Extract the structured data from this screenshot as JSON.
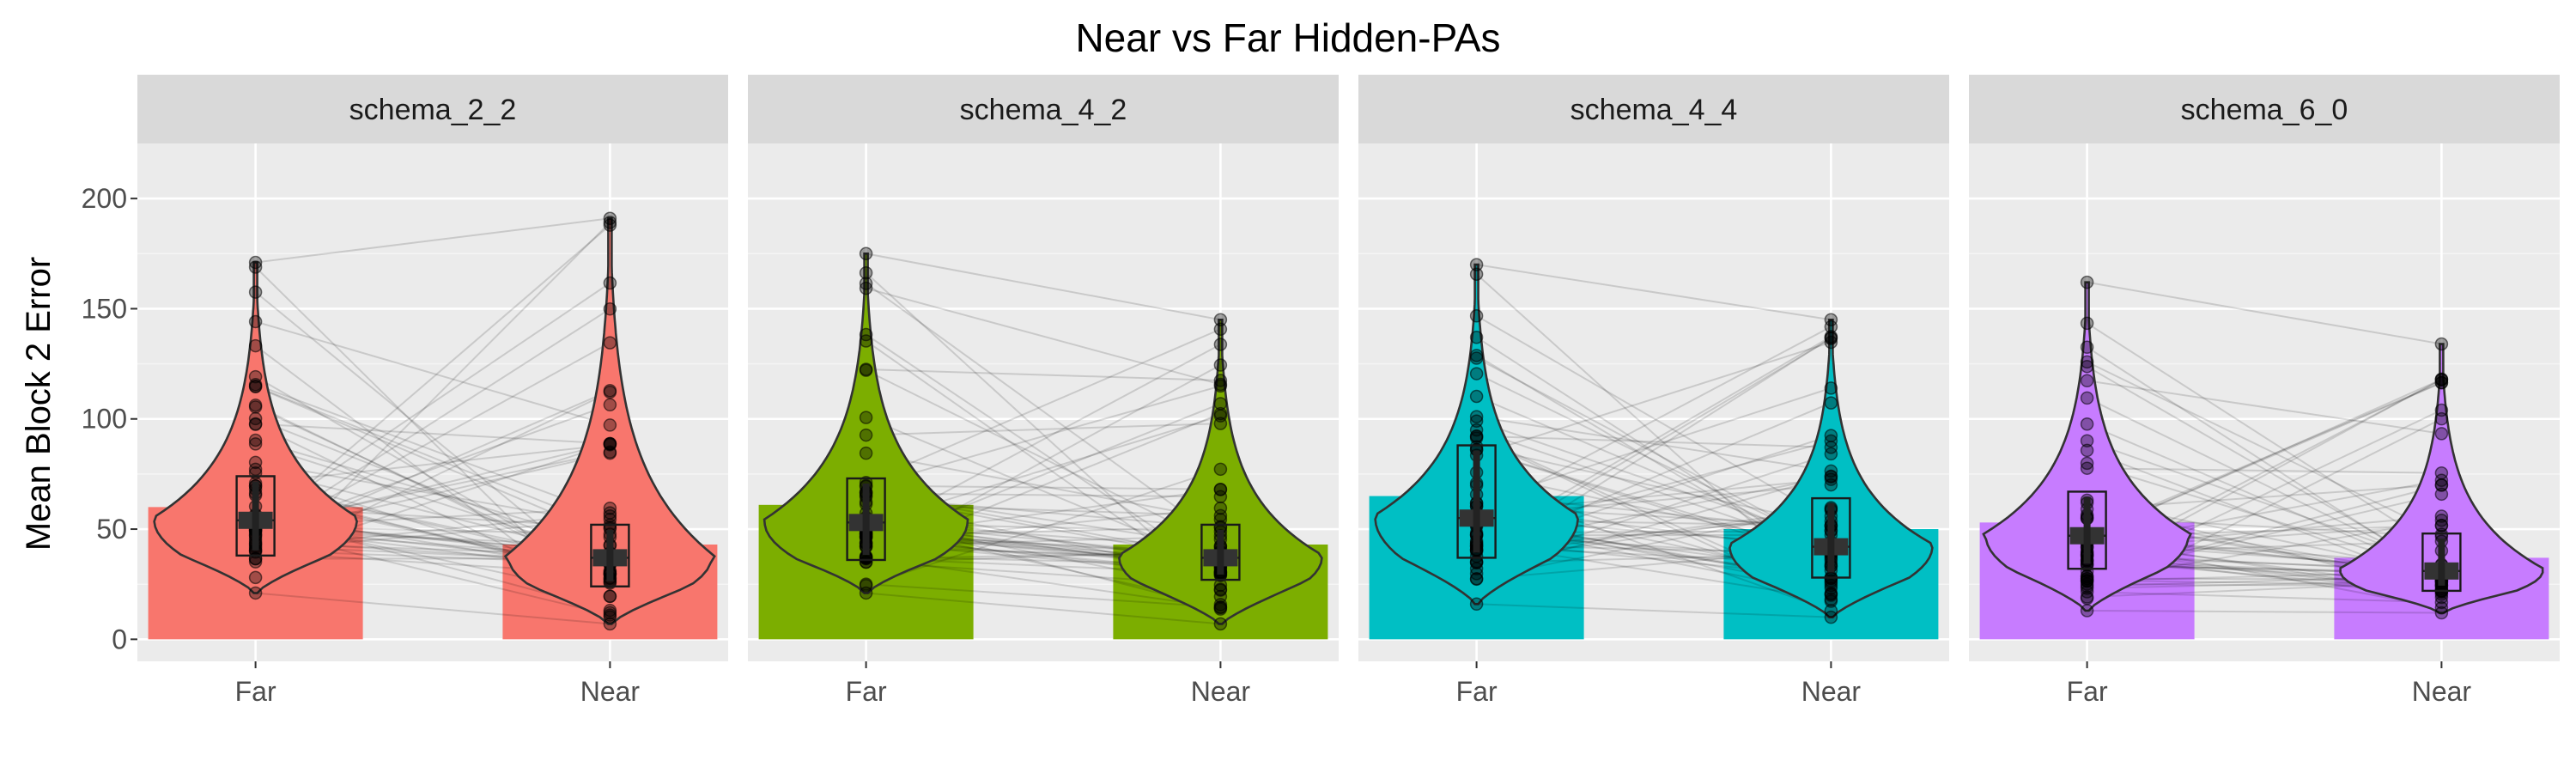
{
  "chart_data": {
    "type": "bar",
    "title": "Near vs Far Hidden-PAs",
    "xlabel": "",
    "ylabel": "Mean Block 2 Error",
    "ylim": [
      -10,
      225
    ],
    "yticks": [
      0,
      50,
      100,
      150,
      200
    ],
    "categories": [
      "Far",
      "Near"
    ],
    "grid": true,
    "legend": "none",
    "overlays": [
      "violin",
      "boxplot",
      "points",
      "paired-lines",
      "mean-crossbar"
    ],
    "facets": [
      {
        "name": "schema_2_2",
        "color": "#F8766D",
        "mean": [
          60,
          43
        ],
        "range": [
          [
            21,
            171
          ],
          [
            7,
            191
          ]
        ],
        "box": [
          [
            38,
            54,
            74
          ],
          [
            24,
            37,
            52
          ]
        ]
      },
      {
        "name": "schema_4_2",
        "color": "#7CAE00",
        "mean": [
          61,
          43
        ],
        "range": [
          [
            21,
            175
          ],
          [
            7,
            145
          ]
        ],
        "box": [
          [
            36,
            53,
            73
          ],
          [
            27,
            37,
            52
          ]
        ]
      },
      {
        "name": "schema_4_4",
        "color": "#00BFC4",
        "mean": [
          65,
          50
        ],
        "range": [
          [
            16,
            170
          ],
          [
            10,
            145
          ]
        ],
        "box": [
          [
            37,
            55,
            88
          ],
          [
            28,
            42,
            64
          ]
        ]
      },
      {
        "name": "schema_6_0",
        "color": "#C77CFF",
        "mean": [
          53,
          37
        ],
        "range": [
          [
            13,
            162
          ],
          [
            12,
            134
          ]
        ],
        "box": [
          [
            32,
            47,
            67
          ],
          [
            22,
            31,
            48
          ]
        ]
      }
    ]
  }
}
